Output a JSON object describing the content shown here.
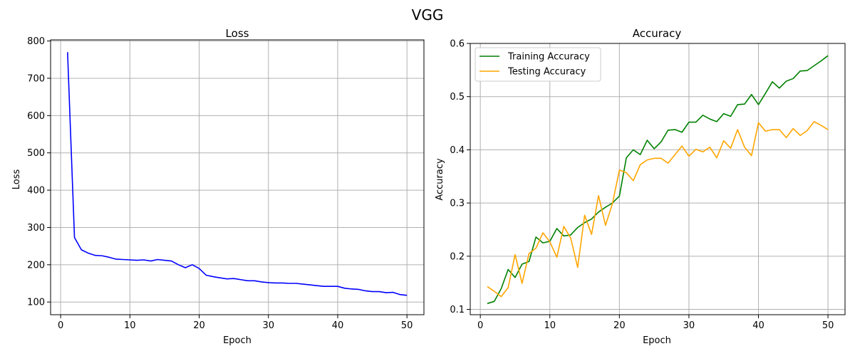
{
  "figure": {
    "title": "VGG"
  },
  "chart_data": [
    {
      "type": "line",
      "title": "Loss",
      "xlabel": "Epoch",
      "ylabel": "Loss",
      "xlim": [
        -1.45,
        52.45
      ],
      "ylim": [
        66.0,
        803.0
      ],
      "xticks": [
        0,
        10,
        20,
        30,
        40,
        50
      ],
      "yticks": [
        100,
        200,
        300,
        400,
        500,
        600,
        700,
        800
      ],
      "grid": true,
      "x": [
        1,
        2,
        3,
        4,
        5,
        6,
        7,
        8,
        9,
        10,
        11,
        12,
        13,
        14,
        15,
        16,
        17,
        18,
        19,
        20,
        21,
        22,
        23,
        24,
        25,
        26,
        27,
        28,
        29,
        30,
        31,
        32,
        33,
        34,
        35,
        36,
        37,
        38,
        39,
        40,
        41,
        42,
        43,
        44,
        45,
        46,
        47,
        48,
        49,
        50
      ],
      "series": [
        {
          "color": "#0000ff",
          "values": [
            770,
            273,
            240,
            231,
            225,
            224,
            220,
            215,
            214,
            213,
            212,
            213,
            210,
            214,
            212,
            210,
            200,
            192,
            200,
            190,
            172,
            168,
            165,
            162,
            163,
            160,
            157,
            157,
            154,
            152,
            151,
            151,
            150,
            150,
            148,
            146,
            144,
            142,
            142,
            142,
            137,
            135,
            134,
            130,
            128,
            128,
            125,
            126,
            120,
            118
          ]
        }
      ]
    },
    {
      "type": "line",
      "title": "Accuracy",
      "xlabel": "Epoch",
      "ylabel": "Accuracy",
      "xlim": [
        -1.45,
        52.45
      ],
      "ylim": [
        0.09,
        0.6
      ],
      "xticks": [
        0,
        10,
        20,
        30,
        40,
        50
      ],
      "yticks": [
        0.1,
        0.2,
        0.3,
        0.4,
        0.5,
        0.6
      ],
      "grid": true,
      "legend": "top-left",
      "x": [
        1,
        2,
        3,
        4,
        5,
        6,
        7,
        8,
        9,
        10,
        11,
        12,
        13,
        14,
        15,
        16,
        17,
        18,
        19,
        20,
        21,
        22,
        23,
        24,
        25,
        26,
        27,
        28,
        29,
        30,
        31,
        32,
        33,
        34,
        35,
        36,
        37,
        38,
        39,
        40,
        41,
        42,
        43,
        44,
        45,
        46,
        47,
        48,
        49,
        50
      ],
      "series": [
        {
          "name": "Training Accuracy",
          "color": "#008000",
          "values": [
            0.111,
            0.115,
            0.139,
            0.175,
            0.16,
            0.185,
            0.19,
            0.236,
            0.225,
            0.228,
            0.252,
            0.238,
            0.24,
            0.254,
            0.263,
            0.27,
            0.283,
            0.292,
            0.3,
            0.313,
            0.385,
            0.4,
            0.391,
            0.418,
            0.402,
            0.415,
            0.437,
            0.438,
            0.433,
            0.452,
            0.452,
            0.465,
            0.458,
            0.453,
            0.468,
            0.463,
            0.485,
            0.486,
            0.504,
            0.485,
            0.506,
            0.528,
            0.516,
            0.529,
            0.534,
            0.548,
            0.549,
            0.558,
            0.567,
            0.577
          ]
        },
        {
          "name": "Testing Accuracy",
          "color": "#ffa500",
          "values": [
            0.143,
            0.134,
            0.124,
            0.141,
            0.203,
            0.149,
            0.205,
            0.215,
            0.244,
            0.227,
            0.198,
            0.256,
            0.234,
            0.179,
            0.277,
            0.241,
            0.314,
            0.258,
            0.299,
            0.362,
            0.357,
            0.342,
            0.372,
            0.381,
            0.384,
            0.384,
            0.375,
            0.391,
            0.407,
            0.388,
            0.401,
            0.396,
            0.405,
            0.385,
            0.417,
            0.403,
            0.438,
            0.405,
            0.389,
            0.451,
            0.435,
            0.438,
            0.438,
            0.423,
            0.44,
            0.427,
            0.436,
            0.453,
            0.446,
            0.438
          ]
        }
      ]
    }
  ]
}
